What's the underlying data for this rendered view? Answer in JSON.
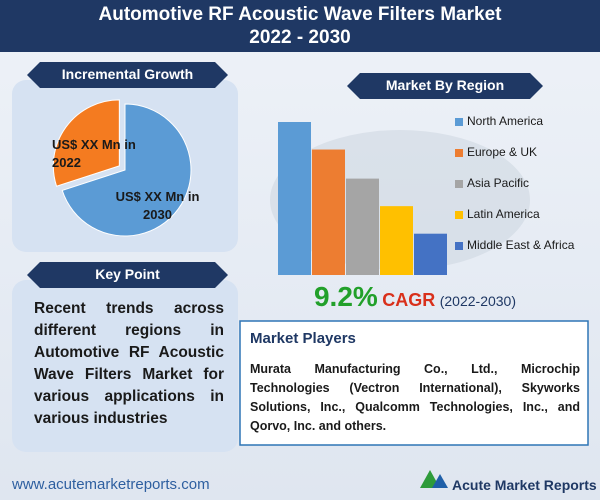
{
  "header": {
    "title": "Automotive RF Acoustic Wave Filters Market",
    "subtitle": "2022 - 2030"
  },
  "chart_data": [
    {
      "type": "pie",
      "title": "Incremental Growth",
      "categories": [
        "US$ XX Mn in 2022",
        "US$ XX Mn in 2030"
      ],
      "values": [
        30,
        70
      ],
      "colors": [
        "#f47b20",
        "#5b9bd5"
      ]
    },
    {
      "type": "bar",
      "title": "Market By Region",
      "categories": [
        "North America",
        "Europe & UK",
        "Asia Pacific",
        "Latin America",
        "Middle East & Africa"
      ],
      "values": [
        100,
        82,
        63,
        45,
        27
      ],
      "colors": [
        "#5b9bd5",
        "#ed7d31",
        "#a5a5a5",
        "#ffc000",
        "#4472c4"
      ]
    }
  ],
  "cagr": {
    "value": "9.2%",
    "label": "CAGR",
    "period": "(2022-2030)"
  },
  "key_point": {
    "heading": "Key Point",
    "text": "Recent trends across different regions in Automotive RF Acoustic Wave Filters Market for various applications in various industries"
  },
  "market_players": {
    "heading": "Market Players",
    "text": "Murata Manufacturing Co., Ltd., Microchip Technologies (Vectron International), Skyworks Solutions, Inc., Qualcomm Technologies, Inc., and Qorvo, Inc. and others."
  },
  "footer": {
    "url": "www.acutemarketreports.com",
    "logo": "Acute Market Reports"
  }
}
